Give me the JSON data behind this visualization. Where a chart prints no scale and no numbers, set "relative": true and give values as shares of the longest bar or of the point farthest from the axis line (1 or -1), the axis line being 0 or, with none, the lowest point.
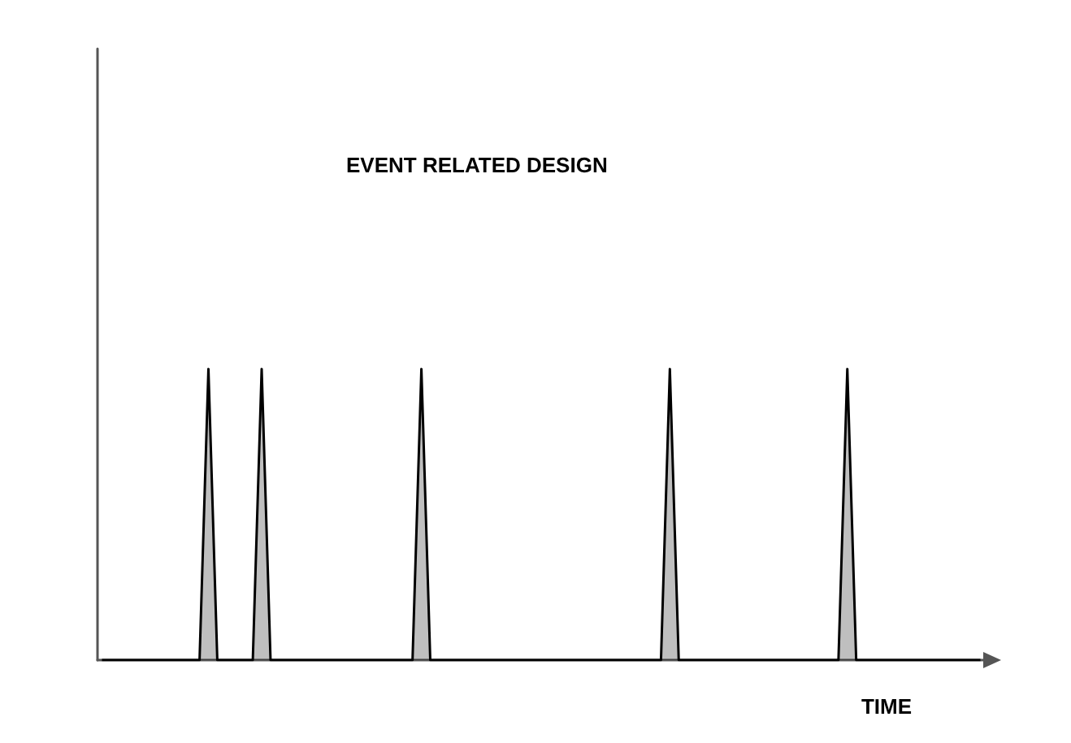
{
  "chart_data": {
    "type": "area",
    "title": "EVENT RELATED DESIGN",
    "xlabel": "TIME",
    "relative": true,
    "color": "#000000",
    "categories": [
      null,
      null,
      null,
      null,
      null,
      null,
      null,
      null,
      null,
      null,
      null,
      null,
      null,
      null,
      null,
      null,
      null,
      null,
      null,
      null,
      null,
      null,
      null,
      null,
      null,
      null,
      null,
      null,
      null,
      null,
      null,
      null,
      null,
      null,
      null,
      null,
      null,
      null,
      null,
      null,
      null,
      null,
      null,
      null,
      null,
      null,
      null,
      null,
      null,
      null,
      null,
      null,
      null,
      null,
      null,
      null,
      null,
      null,
      null,
      null,
      null,
      null,
      null,
      null,
      null,
      null,
      null,
      null,
      null,
      null,
      null,
      null,
      null,
      null,
      null,
      null,
      null,
      null,
      null,
      null,
      null,
      null,
      null,
      null,
      null,
      null,
      null,
      null,
      null,
      null,
      null,
      null,
      null,
      null,
      null,
      null,
      null,
      null,
      null,
      null
    ],
    "values": [
      0,
      0,
      0,
      0,
      0,
      0,
      0,
      0,
      0,
      0,
      0,
      0,
      1,
      0,
      0,
      0,
      0,
      0,
      1,
      0,
      0,
      0,
      0,
      0,
      0,
      0,
      0,
      0,
      0,
      0,
      0,
      0,
      0,
      0,
      0,
      0,
      1,
      0,
      0,
      0,
      0,
      0,
      0,
      0,
      0,
      0,
      0,
      0,
      0,
      0,
      0,
      0,
      0,
      0,
      0,
      0,
      0,
      0,
      0,
      0,
      0,
      0,
      0,
      0,
      1,
      0,
      0,
      0,
      0,
      0,
      0,
      0,
      0,
      0,
      0,
      0,
      0,
      0,
      0,
      0,
      0,
      0,
      0,
      0,
      1,
      0,
      0,
      0,
      0,
      0,
      0,
      0,
      0,
      0,
      0,
      0,
      0,
      0,
      0,
      0
    ]
  }
}
